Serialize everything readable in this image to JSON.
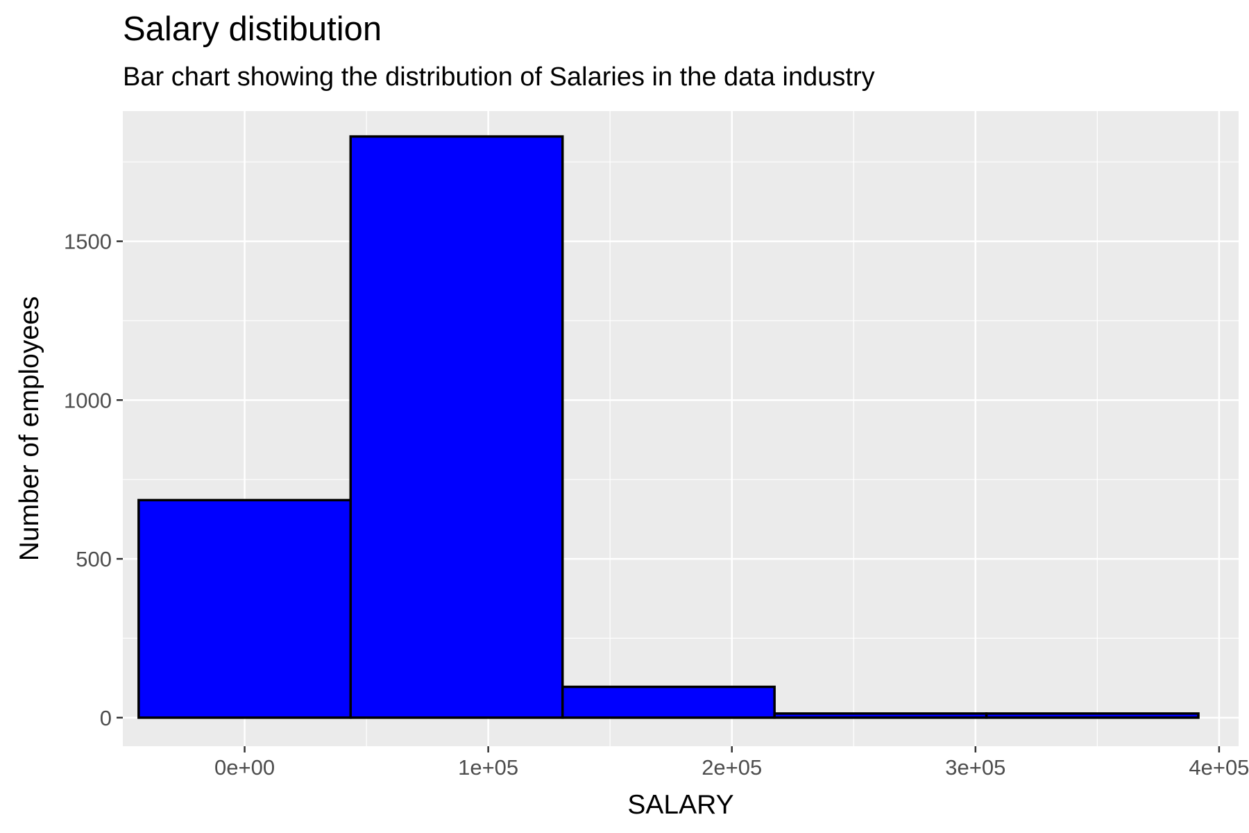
{
  "title": "Salary distibution",
  "subtitle": "Bar chart showing the distribution of Salaries in the data industry",
  "colors": {
    "panel_background": "#EBEBEB",
    "grid_line": "#FFFFFF",
    "bar_fill": "#0000FF",
    "bar_outline": "#000000",
    "tick_color": "#333333",
    "tick_label_color": "#4D4D4D"
  },
  "chart_data": {
    "type": "bar",
    "subtype": "histogram",
    "title": "Salary distibution",
    "subtitle": "Bar chart showing the distribution of Salaries in the data industry",
    "xlabel": "SALARY",
    "ylabel": "Number of employees",
    "xlim": [
      -50000,
      408000
    ],
    "ylim": [
      -90,
      1910
    ],
    "grid": true,
    "bins": [
      {
        "x_start": -43500,
        "x_end": 43500,
        "count": 685
      },
      {
        "x_start": 43500,
        "x_end": 130500,
        "count": 1830
      },
      {
        "x_start": 130500,
        "x_end": 217500,
        "count": 97
      },
      {
        "x_start": 217500,
        "x_end": 304500,
        "count": 13
      },
      {
        "x_start": 304500,
        "x_end": 391500,
        "count": 13
      }
    ],
    "x_ticks": [
      {
        "value": 0,
        "label": "0e+00"
      },
      {
        "value": 100000,
        "label": "1e+05"
      },
      {
        "value": 200000,
        "label": "2e+05"
      },
      {
        "value": 300000,
        "label": "3e+05"
      },
      {
        "value": 400000,
        "label": "4e+05"
      }
    ],
    "y_ticks": [
      {
        "value": 0,
        "label": "0"
      },
      {
        "value": 500,
        "label": "500"
      },
      {
        "value": 1000,
        "label": "1000"
      },
      {
        "value": 1500,
        "label": "1500"
      }
    ]
  }
}
